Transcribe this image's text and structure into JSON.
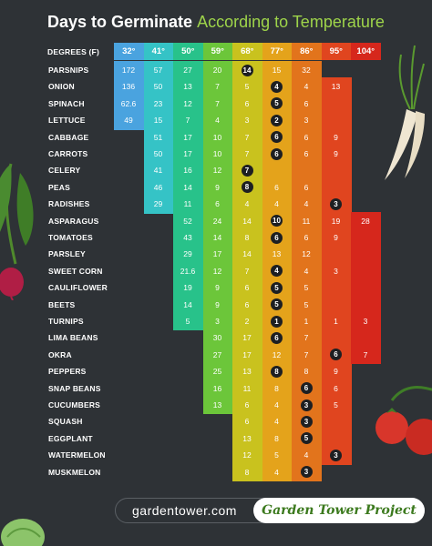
{
  "title": {
    "main": "Days to Germinate",
    "accent": "According to Temperature"
  },
  "header_label": "DEGREES (F)",
  "footer": {
    "url": "gardentower.com",
    "brand": "Garden Tower Project"
  },
  "colors": {
    "background": "#2e3236",
    "bands": [
      "#4aa3df",
      "#35c3c6",
      "#28c28a",
      "#6cc63a",
      "#c9c21e",
      "#e4a31b",
      "#e2741c",
      "#e0451f",
      "#d6271c"
    ],
    "min_marker": "#1d1f22"
  },
  "chart_data": {
    "type": "table",
    "title": "Days to Germinate According to Temperature",
    "column_header": "DEGREES (F)",
    "temperatures": [
      "32°",
      "41°",
      "50°",
      "59°",
      "68°",
      "77°",
      "86°",
      "95°",
      "104°"
    ],
    "rows": [
      {
        "plant": "PARSNIPS",
        "values": [
          "172",
          "57",
          "27",
          "20",
          "14",
          "15",
          "32",
          "",
          ""
        ],
        "min": 4
      },
      {
        "plant": "ONION",
        "values": [
          "136",
          "50",
          "13",
          "7",
          "5",
          "4",
          "4",
          "13",
          ""
        ],
        "min": 5
      },
      {
        "plant": "SPINACH",
        "values": [
          "62.6",
          "23",
          "12",
          "7",
          "6",
          "5",
          "6",
          "",
          ""
        ],
        "min": 5
      },
      {
        "plant": "LETTUCE",
        "values": [
          "49",
          "15",
          "7",
          "4",
          "3",
          "2",
          "3",
          "",
          ""
        ],
        "min": 5
      },
      {
        "plant": "CABBAGE",
        "values": [
          "",
          "51",
          "17",
          "10",
          "7",
          "6",
          "6",
          "9",
          ""
        ],
        "min": 5
      },
      {
        "plant": "CARROTS",
        "values": [
          "",
          "50",
          "17",
          "10",
          "7",
          "6",
          "6",
          "9",
          ""
        ],
        "min": 5
      },
      {
        "plant": "CELERY",
        "values": [
          "",
          "41",
          "16",
          "12",
          "7",
          "",
          "",
          "",
          ""
        ],
        "min": 4
      },
      {
        "plant": "PEAS",
        "values": [
          "",
          "46",
          "14",
          "9",
          "8",
          "6",
          "6",
          "",
          ""
        ],
        "min": 4
      },
      {
        "plant": "RADISHES",
        "values": [
          "",
          "29",
          "11",
          "6",
          "4",
          "4",
          "4",
          "3",
          ""
        ],
        "min": 7
      },
      {
        "plant": "ASPARAGUS",
        "values": [
          "",
          "",
          "52",
          "24",
          "14",
          "10",
          "11",
          "19",
          "28"
        ],
        "min": 5
      },
      {
        "plant": "TOMATOES",
        "values": [
          "",
          "",
          "43",
          "14",
          "8",
          "6",
          "6",
          "9",
          ""
        ],
        "min": 5
      },
      {
        "plant": "PARSLEY",
        "values": [
          "",
          "",
          "29",
          "17",
          "14",
          "13",
          "12",
          "",
          ""
        ],
        "min": null
      },
      {
        "plant": "SWEET CORN",
        "values": [
          "",
          "",
          "21.6",
          "12",
          "7",
          "4",
          "4",
          "3",
          ""
        ],
        "min": 5
      },
      {
        "plant": "CAULIFLOWER",
        "values": [
          "",
          "",
          "19",
          "9",
          "6",
          "5",
          "5",
          "",
          ""
        ],
        "min": 5
      },
      {
        "plant": "BEETS",
        "values": [
          "",
          "",
          "14",
          "9",
          "6",
          "5",
          "5",
          "",
          ""
        ],
        "min": 5
      },
      {
        "plant": "TURNIPS",
        "values": [
          "",
          "",
          "5",
          "3",
          "2",
          "1",
          "1",
          "1",
          "3"
        ],
        "min": 5
      },
      {
        "plant": "LIMA BEANS",
        "values": [
          "",
          "",
          "",
          "30",
          "17",
          "6",
          "7",
          "",
          ""
        ],
        "min": 5
      },
      {
        "plant": "OKRA",
        "values": [
          "",
          "",
          "",
          "27",
          "17",
          "12",
          "7",
          "6",
          "7"
        ],
        "min": 7
      },
      {
        "plant": "PEPPERS",
        "values": [
          "",
          "",
          "",
          "25",
          "13",
          "8",
          "8",
          "9",
          ""
        ],
        "min": 5
      },
      {
        "plant": "SNAP BEANS",
        "values": [
          "",
          "",
          "",
          "16",
          "11",
          "8",
          "6",
          "6",
          ""
        ],
        "min": 6
      },
      {
        "plant": "CUCUMBERS",
        "values": [
          "",
          "",
          "",
          "13",
          "6",
          "4",
          "3",
          "5",
          ""
        ],
        "min": 6
      },
      {
        "plant": "SQUASH",
        "values": [
          "",
          "",
          "",
          "",
          "6",
          "4",
          "3",
          "",
          ""
        ],
        "min": 6
      },
      {
        "plant": "EGGPLANT",
        "values": [
          "",
          "",
          "",
          "",
          "13",
          "8",
          "5",
          "",
          ""
        ],
        "min": 6
      },
      {
        "plant": "WATERMELON",
        "values": [
          "",
          "",
          "",
          "",
          "12",
          "5",
          "4",
          "3",
          ""
        ],
        "min": 7
      },
      {
        "plant": "MUSKMELON",
        "values": [
          "",
          "",
          "",
          "",
          "8",
          "4",
          "3",
          "",
          ""
        ],
        "min": 6
      }
    ]
  }
}
